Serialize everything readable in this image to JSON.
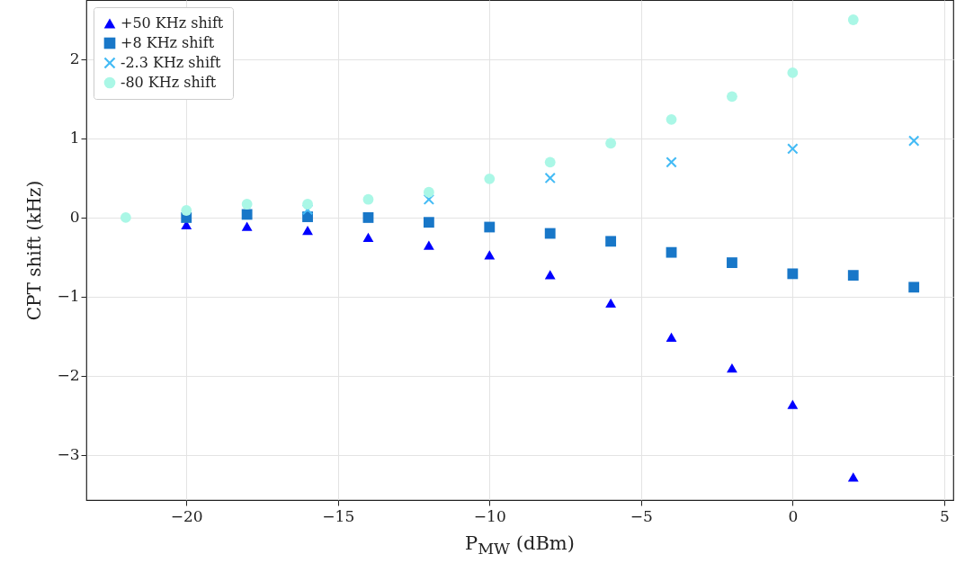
{
  "chart_data": {
    "type": "scatter",
    "xlabel": "P$_{MW}$ (dBm)",
    "ylabel": "CPT shift (kHz)",
    "x": [
      -22,
      -20,
      -18,
      -16,
      -14,
      -12,
      -10,
      -8,
      -6,
      -4,
      -2,
      0,
      2,
      4
    ],
    "series": [
      {
        "name": "+50 KHz shift",
        "color": "#0000ff",
        "marker": "triangle",
        "values": [
          null,
          -0.09,
          -0.11,
          -0.16,
          -0.25,
          -0.35,
          -0.47,
          -0.72,
          -1.08,
          -1.51,
          -1.9,
          -2.36,
          -3.28,
          null
        ]
      },
      {
        "name": "+8 KHz shift",
        "color": "#1877c8",
        "marker": "square",
        "values": [
          null,
          0,
          0.04,
          0.01,
          0,
          -0.06,
          -0.12,
          -0.2,
          -0.3,
          -0.44,
          -0.57,
          -0.71,
          -0.73,
          -0.88
        ]
      },
      {
        "name": "-2.3 KHz shift",
        "color": "#44bbf5",
        "marker": "cross",
        "values": [
          null,
          null,
          null,
          0.1,
          null,
          0.23,
          null,
          0.5,
          null,
          0.7,
          null,
          0.87,
          null,
          0.97
        ]
      },
      {
        "name": "-80 KHz shift",
        "color": "#aaf7e6",
        "marker": "circle",
        "values": [
          0,
          0.09,
          0.17,
          0.17,
          0.23,
          0.32,
          0.49,
          0.7,
          0.94,
          1.24,
          1.53,
          1.83,
          2.5,
          null
        ]
      }
    ],
    "xlim": [
      -23.3,
      5.3
    ],
    "xticks": [
      -20,
      -15,
      -10,
      -5,
      0,
      5
    ],
    "ylim": [
      -3.57,
      2.75
    ],
    "yticks": [
      -3,
      -2,
      -1,
      0,
      1,
      2
    ],
    "grid": true,
    "legend": "top left"
  }
}
